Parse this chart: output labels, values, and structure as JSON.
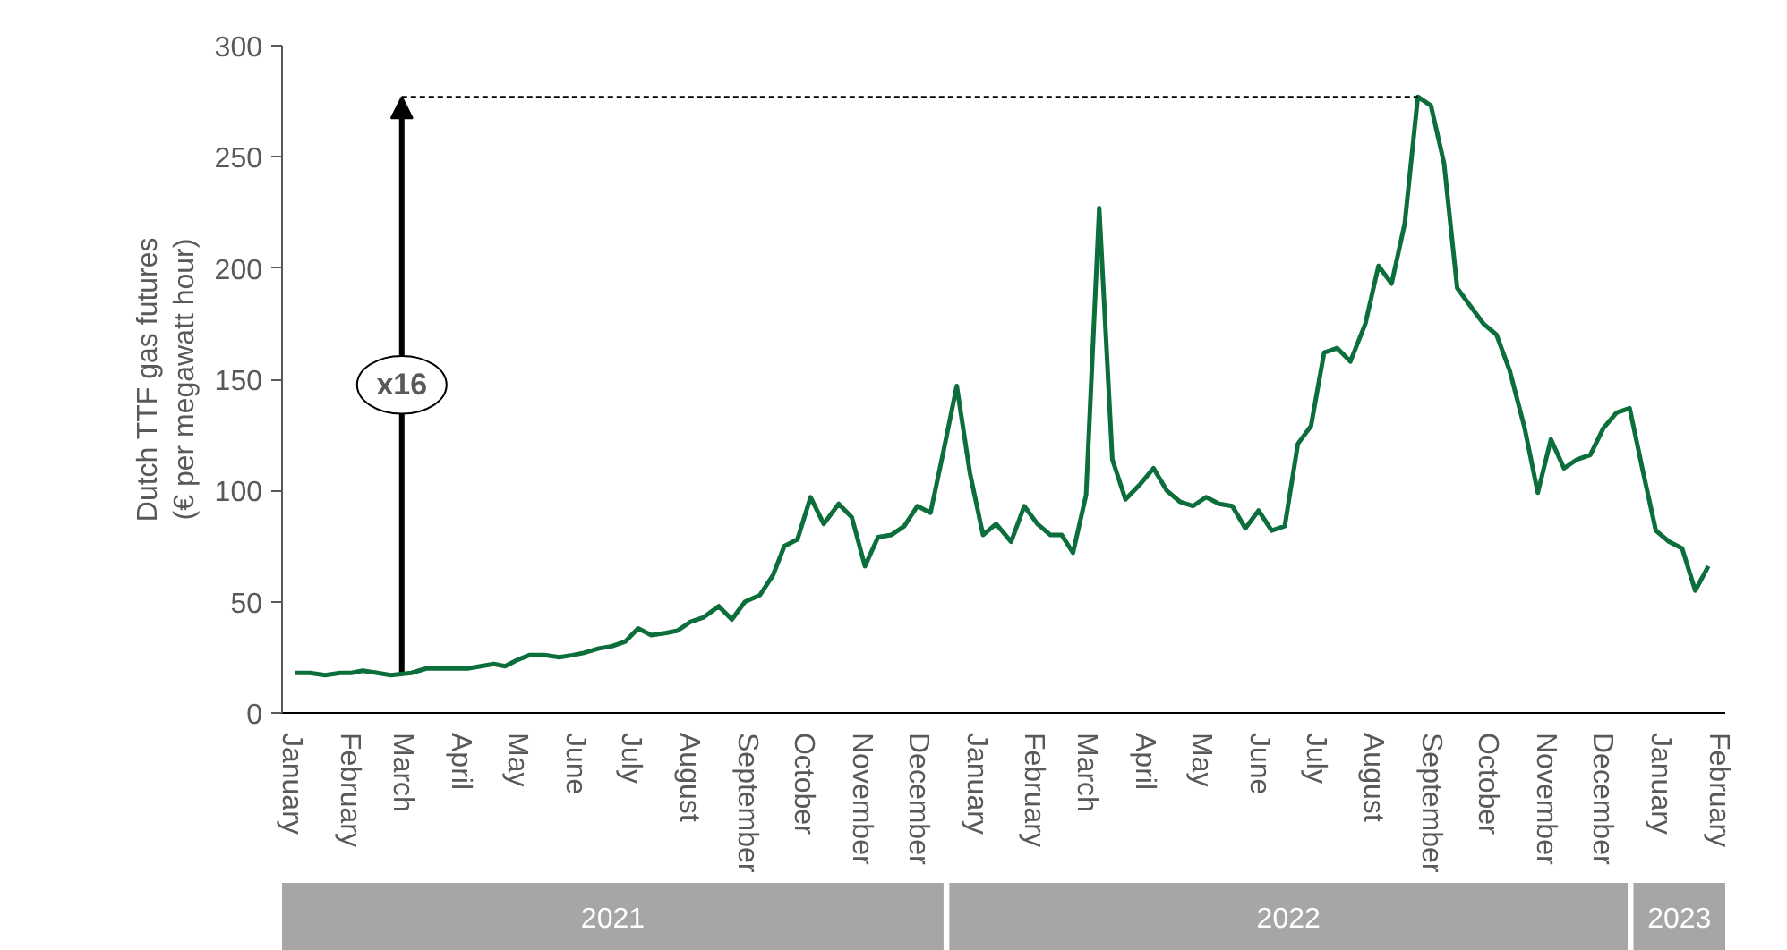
{
  "chart_data": {
    "type": "line",
    "ylabel": "Dutch TTF gas futures\n(€ per megawatt hour)",
    "xlim": [
      "2020-12-27",
      "2023-02-05"
    ],
    "ylim": [
      0,
      300
    ],
    "yticks": [
      0,
      50,
      100,
      150,
      200,
      250,
      300
    ],
    "xticks": [
      {
        "value": "2021-01-01",
        "label": "January"
      },
      {
        "value": "2021-02-01",
        "label": "February"
      },
      {
        "value": "2021-03-01",
        "label": "March"
      },
      {
        "value": "2021-04-01",
        "label": "April"
      },
      {
        "value": "2021-05-01",
        "label": "May"
      },
      {
        "value": "2021-06-01",
        "label": "June"
      },
      {
        "value": "2021-07-01",
        "label": "July"
      },
      {
        "value": "2021-08-01",
        "label": "August"
      },
      {
        "value": "2021-09-01",
        "label": "September"
      },
      {
        "value": "2021-10-01",
        "label": "October"
      },
      {
        "value": "2021-11-01",
        "label": "November"
      },
      {
        "value": "2021-12-01",
        "label": "December"
      },
      {
        "value": "2022-01-01",
        "label": "January"
      },
      {
        "value": "2022-02-01",
        "label": "February"
      },
      {
        "value": "2022-03-01",
        "label": "March"
      },
      {
        "value": "2022-04-01",
        "label": "April"
      },
      {
        "value": "2022-05-01",
        "label": "May"
      },
      {
        "value": "2022-06-01",
        "label": "June"
      },
      {
        "value": "2022-07-01",
        "label": "July"
      },
      {
        "value": "2022-08-01",
        "label": "August"
      },
      {
        "value": "2022-09-01",
        "label": "September"
      },
      {
        "value": "2022-10-01",
        "label": "October"
      },
      {
        "value": "2022-11-01",
        "label": "November"
      },
      {
        "value": "2022-12-01",
        "label": "December"
      },
      {
        "value": "2023-01-01",
        "label": "January"
      },
      {
        "value": "2023-02-01",
        "label": "February"
      }
    ],
    "series": [
      {
        "color": "#0b6e3b",
        "x": [
          "2021-01-03",
          "2021-01-11",
          "2021-01-19",
          "2021-01-27",
          "2021-02-02",
          "2021-02-08",
          "2021-02-16",
          "2021-02-23",
          "2021-03-06",
          "2021-03-14",
          "2021-03-27",
          "2021-04-05",
          "2021-04-12",
          "2021-04-19",
          "2021-04-25",
          "2021-05-02",
          "2021-05-08",
          "2021-05-16",
          "2021-05-24",
          "2021-05-31",
          "2021-06-06",
          "2021-06-14",
          "2021-06-21",
          "2021-06-28",
          "2021-07-05",
          "2021-07-12",
          "2021-07-20",
          "2021-07-26",
          "2021-08-02",
          "2021-08-09",
          "2021-08-17",
          "2021-08-24",
          "2021-08-31",
          "2021-09-08",
          "2021-09-15",
          "2021-09-21",
          "2021-09-28",
          "2021-10-05",
          "2021-10-12",
          "2021-10-20",
          "2021-10-27",
          "2021-11-03",
          "2021-11-10",
          "2021-11-17",
          "2021-11-24",
          "2021-12-01",
          "2021-12-08",
          "2021-12-15",
          "2021-12-22",
          "2021-12-29",
          "2022-01-05",
          "2022-01-12",
          "2022-01-20",
          "2022-01-27",
          "2022-02-03",
          "2022-02-10",
          "2022-02-16",
          "2022-02-22",
          "2022-03-01",
          "2022-03-08",
          "2022-03-15",
          "2022-03-22",
          "2022-03-30",
          "2022-04-06",
          "2022-04-13",
          "2022-04-20",
          "2022-04-27",
          "2022-05-04",
          "2022-05-11",
          "2022-05-18",
          "2022-05-25",
          "2022-06-01",
          "2022-06-08",
          "2022-06-15",
          "2022-06-22",
          "2022-06-29",
          "2022-07-06",
          "2022-07-13",
          "2022-07-20",
          "2022-07-28",
          "2022-08-04",
          "2022-08-11",
          "2022-08-18",
          "2022-08-25",
          "2022-09-01",
          "2022-09-08",
          "2022-09-15",
          "2022-09-22",
          "2022-09-29",
          "2022-10-06",
          "2022-10-13",
          "2022-10-21",
          "2022-10-28",
          "2022-11-04",
          "2022-11-11",
          "2022-11-18",
          "2022-11-25",
          "2022-12-02",
          "2022-12-09",
          "2022-12-16",
          "2022-12-23",
          "2022-12-30",
          "2023-01-06",
          "2023-01-13",
          "2023-01-20",
          "2023-01-27"
        ],
        "values": [
          18,
          18,
          17,
          18,
          18,
          19,
          18,
          17,
          18,
          20,
          20,
          20,
          21,
          22,
          21,
          24,
          26,
          26,
          25,
          26,
          27,
          29,
          30,
          32,
          38,
          35,
          36,
          37,
          41,
          43,
          48,
          42,
          50,
          53,
          62,
          75,
          78,
          97,
          85,
          94,
          88,
          66,
          79,
          80,
          84,
          93,
          90,
          118,
          147,
          108,
          80,
          85,
          77,
          93,
          85,
          80,
          80,
          72,
          98,
          227,
          114,
          96,
          103,
          110,
          100,
          95,
          93,
          97,
          94,
          93,
          83,
          91,
          82,
          84,
          121,
          129,
          162,
          164,
          158,
          175,
          201,
          193,
          220,
          277,
          273,
          247,
          191,
          183,
          175,
          170,
          154,
          128,
          99,
          123,
          110,
          114,
          116,
          128,
          135,
          137,
          109,
          82,
          77,
          74,
          55,
          66
        ]
      }
    ],
    "annotations": [
      "x16",
      "2021",
      "2022",
      "2023"
    ]
  }
}
